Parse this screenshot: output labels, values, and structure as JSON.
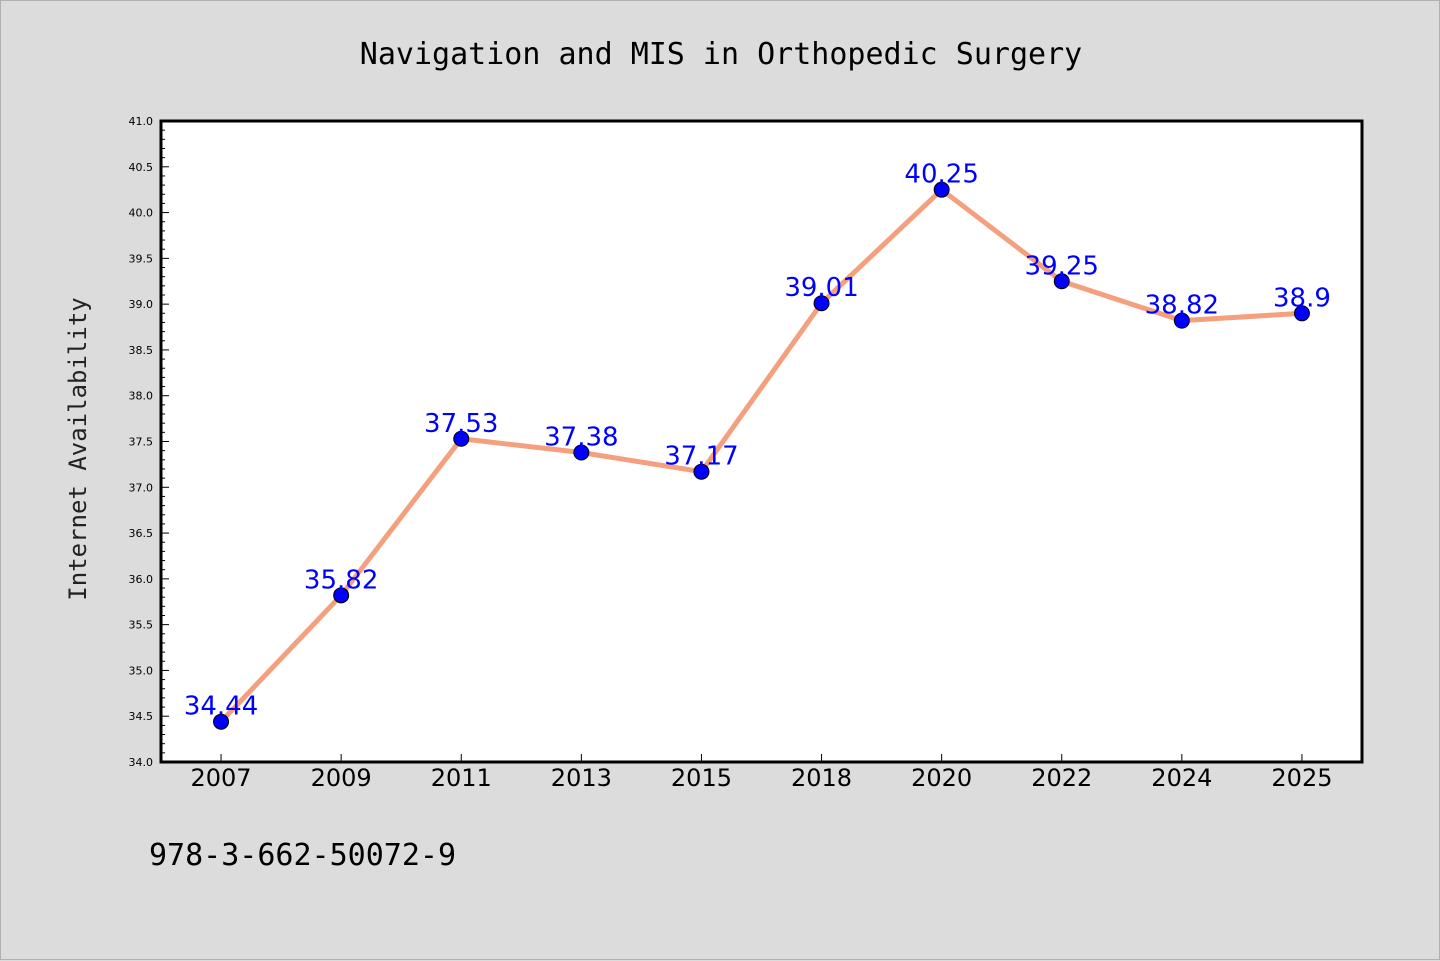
{
  "chart_data": {
    "type": "line",
    "title": "Navigation and MIS in Orthopedic Surgery",
    "xlabel": "",
    "ylabel": "Internet Availability",
    "categories": [
      "2007",
      "2009",
      "2011",
      "2013",
      "2015",
      "2018",
      "2020",
      "2022",
      "2024",
      "2025"
    ],
    "series": [
      {
        "values": [
          34.44,
          35.82,
          37.53,
          37.38,
          37.17,
          39.01,
          40.25,
          39.25,
          38.82,
          38.9
        ],
        "labels": [
          "34.44",
          "35.82",
          "37.53",
          "37.38",
          "37.17",
          "39.01",
          "40.25",
          "39.25",
          "38.82",
          "38.9"
        ],
        "line_color": "#f4a07f",
        "marker_color": "#0000ff"
      }
    ],
    "ylim": [
      34.0,
      41.0
    ],
    "yticks": [
      "34.0",
      "34.5",
      "35.0",
      "35.5",
      "36.0",
      "36.5",
      "37.0",
      "37.5",
      "38.0",
      "38.5",
      "39.0",
      "39.5",
      "40.0",
      "40.5",
      "41.0"
    ],
    "grid": false,
    "legend": "none",
    "label_color": "#0000ff"
  },
  "footer": {
    "text": "978-3-662-50072-9"
  }
}
